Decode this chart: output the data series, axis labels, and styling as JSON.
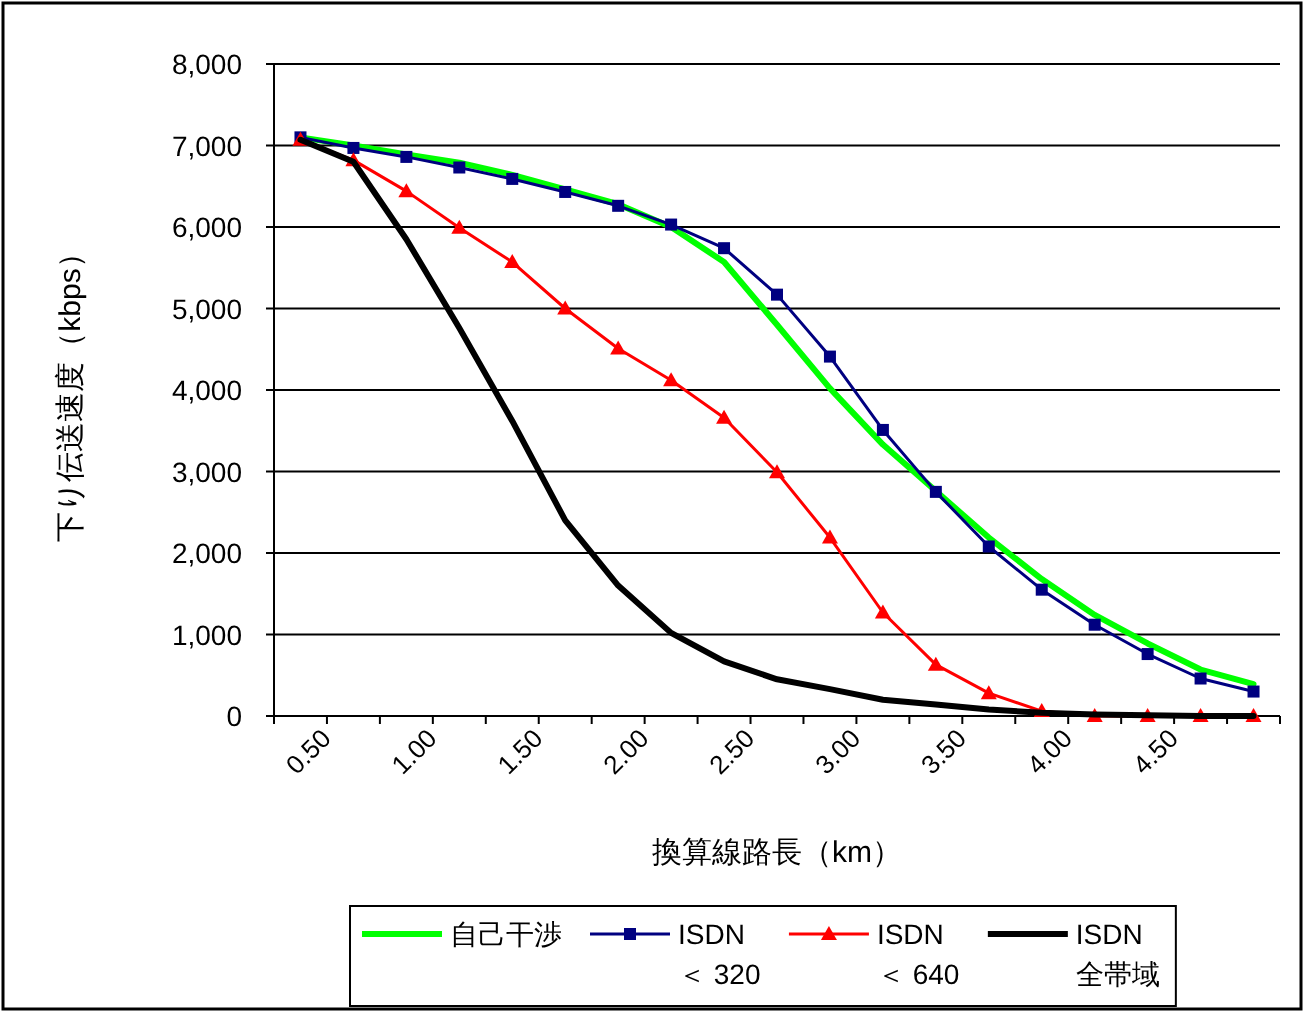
{
  "chart_data": {
    "type": "line",
    "xlabel": "換算線路長（km）",
    "ylabel": "下り伝送速度（kbps）",
    "categories": [
      "0.50",
      null,
      "1.00",
      null,
      "1.50",
      null,
      "2.00",
      null,
      "2.50",
      null,
      "3.00",
      null,
      "3.50",
      null,
      "4.00",
      null,
      "4.50",
      null,
      null
    ],
    "ylim": [
      0,
      8000
    ],
    "yticks": [
      {
        "value": 0,
        "label": "0"
      },
      {
        "value": 1000,
        "label": "1,000"
      },
      {
        "value": 2000,
        "label": "2,000"
      },
      {
        "value": 3000,
        "label": "3,000"
      },
      {
        "value": 4000,
        "label": "4,000"
      },
      {
        "value": 5000,
        "label": "5,000"
      },
      {
        "value": 6000,
        "label": "6,000"
      },
      {
        "value": 7000,
        "label": "7,000"
      },
      {
        "value": 8000,
        "label": "8,000"
      }
    ],
    "grid": "y",
    "legend": "bottom",
    "series": [
      {
        "name": "自己干渉",
        "color": "#00ff00",
        "marker": "none",
        "values": [
          7100,
          7000,
          6890,
          6790,
          6640,
          6460,
          6280,
          6000,
          5570,
          4800,
          4020,
          3330,
          2760,
          2190,
          1680,
          1240,
          890,
          570,
          390
        ]
      },
      {
        "name": "ISDN ＜ 320",
        "color": "#000080",
        "marker": "square",
        "values": [
          7100,
          6970,
          6860,
          6730,
          6590,
          6430,
          6260,
          6030,
          5740,
          5170,
          4410,
          3510,
          2750,
          2080,
          1550,
          1120,
          760,
          460,
          300
        ]
      },
      {
        "name": "ISDN ＜ 640",
        "color": "#ff0000",
        "marker": "triangle",
        "values": [
          7070,
          6820,
          6440,
          5990,
          5570,
          5000,
          4510,
          4120,
          3660,
          2990,
          2190,
          1270,
          630,
          280,
          60,
          0,
          0,
          0,
          0
        ]
      },
      {
        "name": "ISDN 全帯域",
        "color": "#000000",
        "marker": "none",
        "values": [
          7070,
          6800,
          5850,
          4760,
          3620,
          2400,
          1600,
          1020,
          670,
          450,
          330,
          200,
          140,
          80,
          40,
          20,
          10,
          0,
          0
        ]
      }
    ]
  }
}
